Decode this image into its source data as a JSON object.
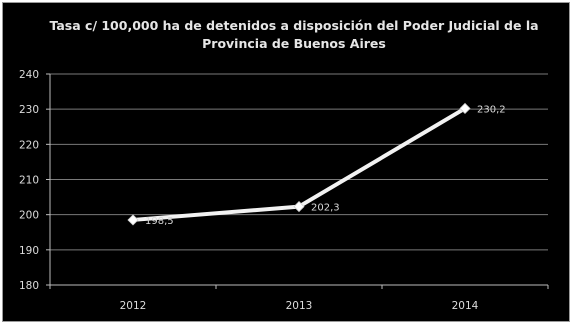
{
  "chart_data": {
    "type": "line",
    "title_lines": [
      "Tasa c/ 100,000 ha de detenidos a disposición  del Poder Judicial de la",
      "Provincia de Buenos Aires"
    ],
    "categories": [
      "2012",
      "2013",
      "2014"
    ],
    "series": [
      {
        "values": [
          198.5,
          202.3,
          230.2
        ],
        "labels": [
          "198,5",
          "202,3",
          "230,2"
        ],
        "color": "#f2f2f2"
      }
    ],
    "xlabel": "",
    "ylabel": "",
    "ylim": [
      180,
      240
    ],
    "yticks": [
      180,
      190,
      200,
      210,
      220,
      230,
      240
    ],
    "ytick_labels": [
      "180",
      "190",
      "200",
      "210",
      "220",
      "230",
      "240"
    ],
    "grid": true,
    "legend": "none",
    "colors": {
      "background": "#000000",
      "gridline": "#7a7a7a",
      "axis": "#bdbdbd",
      "text": "#dcdcdc"
    }
  }
}
